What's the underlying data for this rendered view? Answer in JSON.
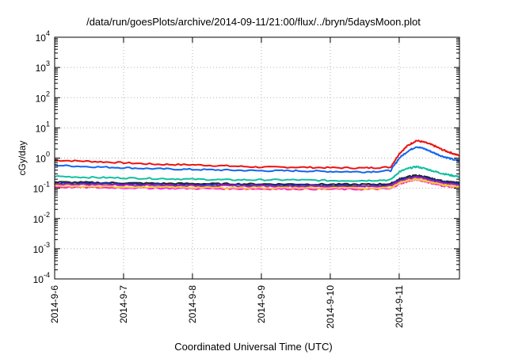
{
  "chart_data": {
    "type": "line",
    "title": "/data/run/goesPlots/archive/2014-09-11/21:00/flux/../bryn/5daysMoon.plot",
    "xlabel": "Coordinated Universal Time (UTC)",
    "ylabel": "cGy/day",
    "y_scale": "log",
    "ylim": [
      0.0001,
      10000
    ],
    "y_ticks": [
      {
        "base": "10",
        "exp": "-4",
        "value": 0.0001
      },
      {
        "base": "10",
        "exp": "-3",
        "value": 0.001
      },
      {
        "base": "10",
        "exp": "-2",
        "value": 0.01
      },
      {
        "base": "10",
        "exp": "-1",
        "value": 0.1
      },
      {
        "base": "10",
        "exp": "0",
        "value": 1
      },
      {
        "base": "10",
        "exp": "1",
        "value": 10
      },
      {
        "base": "10",
        "exp": "2",
        "value": 100
      },
      {
        "base": "10",
        "exp": "3",
        "value": 1000
      },
      {
        "base": "10",
        "exp": "4",
        "value": 10000
      }
    ],
    "xlim": [
      "2014-09-06",
      "2014-09-11 21:00"
    ],
    "x_ticks": [
      {
        "label": "2014-9-6",
        "value": "2014-09-06"
      },
      {
        "label": "2014-9-7",
        "value": "2014-09-07"
      },
      {
        "label": "2014-9-8",
        "value": "2014-09-08"
      },
      {
        "label": "2014-9-9",
        "value": "2014-09-09"
      },
      {
        "label": "2014-9-10",
        "value": "2014-09-10"
      },
      {
        "label": "2014-9-11",
        "value": "2014-09-11"
      }
    ],
    "grid": true,
    "legend": "none",
    "series": [
      {
        "color": "#ee1111",
        "x": [
          "2014-09-06 00:00",
          "2014-09-06 12:00",
          "2014-09-07 00:00",
          "2014-09-07 12:00",
          "2014-09-08 00:00",
          "2014-09-08 12:00",
          "2014-09-09 00:00",
          "2014-09-09 12:00",
          "2014-09-10 00:00",
          "2014-09-10 12:00",
          "2014-09-10 21:00",
          "2014-09-11 00:00",
          "2014-09-11 03:00",
          "2014-09-11 06:00",
          "2014-09-11 09:00",
          "2014-09-11 12:00",
          "2014-09-11 15:00",
          "2014-09-11 18:00",
          "2014-09-11 21:00"
        ],
        "y": [
          0.85,
          0.78,
          0.7,
          0.62,
          0.6,
          0.55,
          0.5,
          0.5,
          0.48,
          0.47,
          0.5,
          1.4,
          2.6,
          3.8,
          3.3,
          2.6,
          1.9,
          1.5,
          1.2
        ]
      },
      {
        "color": "#1166ee",
        "x": [
          "2014-09-06 00:00",
          "2014-09-06 12:00",
          "2014-09-07 00:00",
          "2014-09-07 12:00",
          "2014-09-08 00:00",
          "2014-09-08 12:00",
          "2014-09-09 00:00",
          "2014-09-09 12:00",
          "2014-09-10 00:00",
          "2014-09-10 12:00",
          "2014-09-10 21:00",
          "2014-09-11 00:00",
          "2014-09-11 03:00",
          "2014-09-11 06:00",
          "2014-09-11 09:00",
          "2014-09-11 12:00",
          "2014-09-11 15:00",
          "2014-09-11 18:00",
          "2014-09-11 21:00"
        ],
        "y": [
          0.58,
          0.52,
          0.48,
          0.44,
          0.42,
          0.4,
          0.38,
          0.38,
          0.36,
          0.35,
          0.38,
          1.0,
          1.7,
          2.4,
          2.0,
          1.5,
          1.15,
          0.95,
          0.78
        ]
      },
      {
        "color": "#11c0a0",
        "x": [
          "2014-09-06 00:00",
          "2014-09-06 12:00",
          "2014-09-07 00:00",
          "2014-09-07 12:00",
          "2014-09-08 00:00",
          "2014-09-08 12:00",
          "2014-09-09 00:00",
          "2014-09-09 12:00",
          "2014-09-10 00:00",
          "2014-09-10 12:00",
          "2014-09-10 21:00",
          "2014-09-11 00:00",
          "2014-09-11 03:00",
          "2014-09-11 06:00",
          "2014-09-11 09:00",
          "2014-09-11 12:00",
          "2014-09-11 15:00",
          "2014-09-11 18:00",
          "2014-09-11 21:00"
        ],
        "y": [
          0.25,
          0.23,
          0.22,
          0.21,
          0.2,
          0.19,
          0.19,
          0.19,
          0.18,
          0.18,
          0.19,
          0.35,
          0.45,
          0.52,
          0.45,
          0.37,
          0.31,
          0.27,
          0.24
        ]
      },
      {
        "color": "#222222",
        "x": [
          "2014-09-06 00:00",
          "2014-09-06 12:00",
          "2014-09-07 00:00",
          "2014-09-07 12:00",
          "2014-09-08 00:00",
          "2014-09-08 12:00",
          "2014-09-09 00:00",
          "2014-09-09 12:00",
          "2014-09-10 00:00",
          "2014-09-10 12:00",
          "2014-09-10 21:00",
          "2014-09-11 00:00",
          "2014-09-11 03:00",
          "2014-09-11 06:00",
          "2014-09-11 09:00",
          "2014-09-11 12:00",
          "2014-09-11 15:00",
          "2014-09-11 18:00",
          "2014-09-11 21:00"
        ],
        "y": [
          0.16,
          0.155,
          0.15,
          0.145,
          0.142,
          0.14,
          0.138,
          0.137,
          0.135,
          0.134,
          0.14,
          0.2,
          0.24,
          0.27,
          0.24,
          0.2,
          0.175,
          0.16,
          0.15
        ]
      },
      {
        "color": "#1a2fb0",
        "x": [
          "2014-09-06 00:00",
          "2014-09-06 12:00",
          "2014-09-07 00:00",
          "2014-09-07 12:00",
          "2014-09-08 00:00",
          "2014-09-08 12:00",
          "2014-09-09 00:00",
          "2014-09-09 12:00",
          "2014-09-10 00:00",
          "2014-09-10 12:00",
          "2014-09-10 21:00",
          "2014-09-11 00:00",
          "2014-09-11 03:00",
          "2014-09-11 06:00",
          "2014-09-11 09:00",
          "2014-09-11 12:00",
          "2014-09-11 15:00",
          "2014-09-11 18:00",
          "2014-09-11 21:00"
        ],
        "y": [
          0.148,
          0.143,
          0.138,
          0.134,
          0.131,
          0.129,
          0.127,
          0.126,
          0.124,
          0.123,
          0.129,
          0.185,
          0.22,
          0.25,
          0.22,
          0.185,
          0.162,
          0.148,
          0.139
        ]
      },
      {
        "color": "#b020b0",
        "x": [
          "2014-09-06 00:00",
          "2014-09-06 12:00",
          "2014-09-07 00:00",
          "2014-09-07 12:00",
          "2014-09-08 00:00",
          "2014-09-08 12:00",
          "2014-09-09 00:00",
          "2014-09-09 12:00",
          "2014-09-10 00:00",
          "2014-09-10 12:00",
          "2014-09-10 21:00",
          "2014-09-11 00:00",
          "2014-09-11 03:00",
          "2014-09-11 06:00",
          "2014-09-11 09:00",
          "2014-09-11 12:00",
          "2014-09-11 15:00",
          "2014-09-11 18:00",
          "2014-09-11 21:00"
        ],
        "y": [
          0.138,
          0.133,
          0.129,
          0.125,
          0.122,
          0.12,
          0.118,
          0.117,
          0.115,
          0.114,
          0.12,
          0.17,
          0.205,
          0.235,
          0.205,
          0.172,
          0.15,
          0.137,
          0.129
        ]
      },
      {
        "color": "#ff22dd",
        "x": [
          "2014-09-06 00:00",
          "2014-09-06 12:00",
          "2014-09-07 00:00",
          "2014-09-07 12:00",
          "2014-09-08 00:00",
          "2014-09-08 12:00",
          "2014-09-09 00:00",
          "2014-09-09 12:00",
          "2014-09-10 00:00",
          "2014-09-10 12:00",
          "2014-09-10 21:00",
          "2014-09-11 00:00",
          "2014-09-11 03:00",
          "2014-09-11 06:00",
          "2014-09-11 09:00",
          "2014-09-11 12:00",
          "2014-09-11 15:00",
          "2014-09-11 18:00",
          "2014-09-11 21:00"
        ],
        "y": [
          0.11,
          0.107,
          0.104,
          0.101,
          0.099,
          0.097,
          0.096,
          0.095,
          0.094,
          0.093,
          0.097,
          0.14,
          0.17,
          0.195,
          0.17,
          0.142,
          0.123,
          0.112,
          0.105
        ]
      },
      {
        "color": "#f0d030",
        "x": [
          "2014-09-06 00:00",
          "2014-09-06 12:00",
          "2014-09-07 00:00",
          "2014-09-07 12:00",
          "2014-09-08 00:00",
          "2014-09-08 12:00",
          "2014-09-09 00:00",
          "2014-09-09 12:00",
          "2014-09-10 00:00",
          "2014-09-10 12:00",
          "2014-09-10 21:00",
          "2014-09-11 00:00",
          "2014-09-11 03:00",
          "2014-09-11 06:00",
          "2014-09-11 09:00",
          "2014-09-11 12:00",
          "2014-09-11 15:00",
          "2014-09-11 18:00",
          "2014-09-11 21:00"
        ],
        "y": [
          0.118,
          0.114,
          0.111,
          0.108,
          0.106,
          0.104,
          0.103,
          0.102,
          0.101,
          0.1,
          0.104,
          0.15,
          0.18,
          0.205,
          0.18,
          0.15,
          0.131,
          0.119,
          0.112
        ]
      }
    ]
  }
}
